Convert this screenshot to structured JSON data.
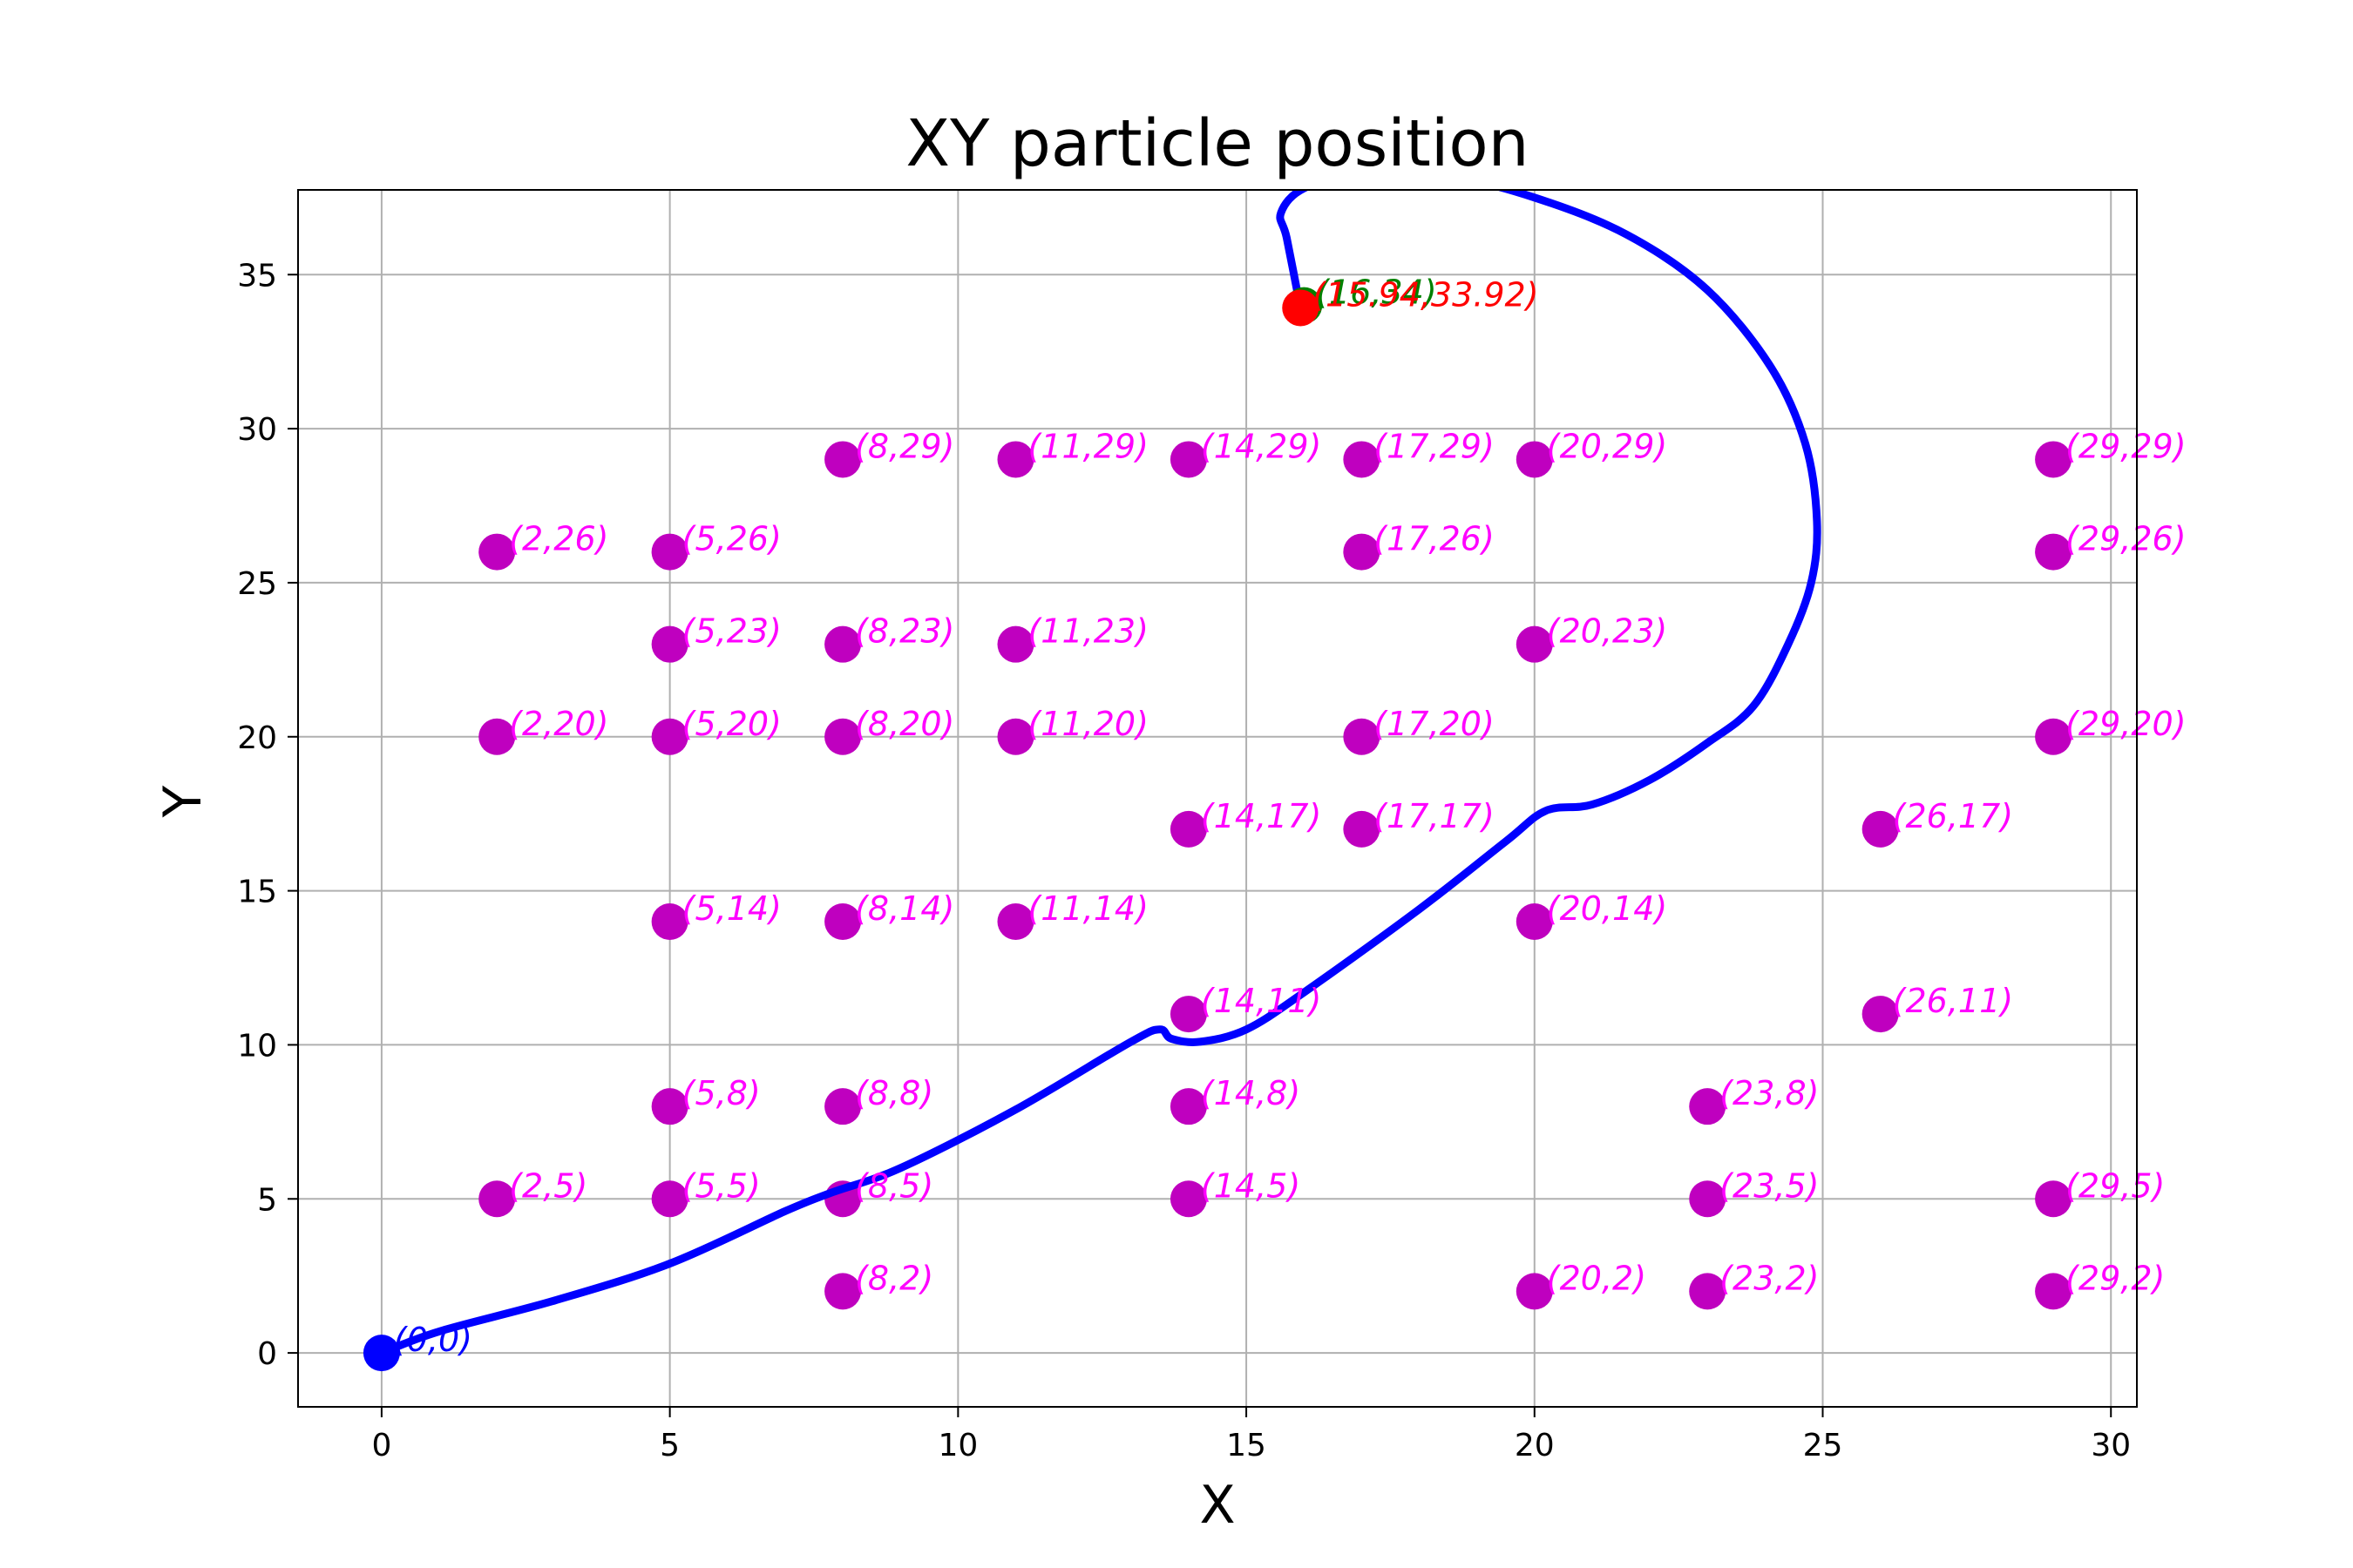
{
  "chart_data": {
    "type": "scatter",
    "title": "XY particle position",
    "xlabel": "X",
    "ylabel": "Y",
    "xlim": [
      -1.45,
      30.45
    ],
    "ylim": [
      -1.75,
      37.75
    ],
    "xticks": [
      0,
      5,
      10,
      15,
      20,
      25,
      30
    ],
    "yticks": [
      0,
      5,
      10,
      15,
      20,
      25,
      30,
      35
    ],
    "grid": true,
    "colors": {
      "obstacle": "#bf00bf",
      "obstacle_label": "#ff00ff",
      "path": "#0000ff",
      "start": "#0000ff",
      "target": "#008000",
      "final": "#ff0000"
    },
    "obstacles": [
      {
        "x": 2,
        "y": 5,
        "label": "(2,5)"
      },
      {
        "x": 2,
        "y": 20,
        "label": "(2,20)"
      },
      {
        "x": 2,
        "y": 26,
        "label": "(2,26)"
      },
      {
        "x": 5,
        "y": 5,
        "label": "(5,5)"
      },
      {
        "x": 5,
        "y": 8,
        "label": "(5,8)"
      },
      {
        "x": 5,
        "y": 14,
        "label": "(5,14)"
      },
      {
        "x": 5,
        "y": 20,
        "label": "(5,20)"
      },
      {
        "x": 5,
        "y": 23,
        "label": "(5,23)"
      },
      {
        "x": 5,
        "y": 26,
        "label": "(5,26)"
      },
      {
        "x": 8,
        "y": 2,
        "label": "(8,2)"
      },
      {
        "x": 8,
        "y": 5,
        "label": "(8,5)"
      },
      {
        "x": 8,
        "y": 8,
        "label": "(8,8)"
      },
      {
        "x": 8,
        "y": 14,
        "label": "(8,14)"
      },
      {
        "x": 8,
        "y": 20,
        "label": "(8,20)"
      },
      {
        "x": 8,
        "y": 23,
        "label": "(8,23)"
      },
      {
        "x": 8,
        "y": 29,
        "label": "(8,29)"
      },
      {
        "x": 11,
        "y": 14,
        "label": "(11,14)"
      },
      {
        "x": 11,
        "y": 20,
        "label": "(11,20)"
      },
      {
        "x": 11,
        "y": 23,
        "label": "(11,23)"
      },
      {
        "x": 11,
        "y": 29,
        "label": "(11,29)"
      },
      {
        "x": 14,
        "y": 5,
        "label": "(14,5)"
      },
      {
        "x": 14,
        "y": 8,
        "label": "(14,8)"
      },
      {
        "x": 14,
        "y": 11,
        "label": "(14,11)"
      },
      {
        "x": 14,
        "y": 17,
        "label": "(14,17)"
      },
      {
        "x": 14,
        "y": 29,
        "label": "(14,29)"
      },
      {
        "x": 17,
        "y": 17,
        "label": "(17,17)"
      },
      {
        "x": 17,
        "y": 20,
        "label": "(17,20)"
      },
      {
        "x": 17,
        "y": 26,
        "label": "(17,26)"
      },
      {
        "x": 17,
        "y": 29,
        "label": "(17,29)"
      },
      {
        "x": 20,
        "y": 2,
        "label": "(20,2)"
      },
      {
        "x": 20,
        "y": 14,
        "label": "(20,14)"
      },
      {
        "x": 20,
        "y": 23,
        "label": "(20,23)"
      },
      {
        "x": 20,
        "y": 29,
        "label": "(20,29)"
      },
      {
        "x": 23,
        "y": 2,
        "label": "(23,2)"
      },
      {
        "x": 23,
        "y": 5,
        "label": "(23,5)"
      },
      {
        "x": 23,
        "y": 8,
        "label": "(23,8)"
      },
      {
        "x": 26,
        "y": 11,
        "label": "(26,11)"
      },
      {
        "x": 26,
        "y": 17,
        "label": "(26,17)"
      },
      {
        "x": 29,
        "y": 2,
        "label": "(29,2)"
      },
      {
        "x": 29,
        "y": 5,
        "label": "(29,5)"
      },
      {
        "x": 29,
        "y": 20,
        "label": "(29,20)"
      },
      {
        "x": 29,
        "y": 26,
        "label": "(29,26)"
      },
      {
        "x": 29,
        "y": 29,
        "label": "(29,29)"
      }
    ],
    "start": {
      "x": 0,
      "y": 0,
      "label": "(0,0)"
    },
    "target": {
      "x": 16,
      "y": 34,
      "label": "(16,34)"
    },
    "final": {
      "x": 15.94,
      "y": 33.92,
      "label": "(15.94,33.92)"
    },
    "path": {
      "x": [
        0,
        1,
        3,
        5,
        7,
        7.8,
        9,
        11,
        13,
        13.5,
        13.7,
        14.2,
        15,
        16,
        18,
        19.5,
        20.2,
        21,
        22,
        23,
        23.8,
        24.4,
        24.8,
        24.9,
        24.7,
        24.1,
        23,
        21.6,
        20,
        18.5,
        17,
        16,
        15.6,
        15.7,
        15.94
      ],
      "y": [
        0,
        0.7,
        1.7,
        2.9,
        4.6,
        5.2,
        6,
        7.9,
        10.1,
        10.5,
        10.2,
        10.1,
        10.5,
        11.7,
        14.4,
        16.6,
        17.6,
        17.8,
        18.6,
        19.8,
        21,
        23,
        25,
        27,
        29.5,
        32,
        34.5,
        36.3,
        37.5,
        38.2,
        38.3,
        37.8,
        37,
        36.2,
        33.92
      ]
    }
  }
}
